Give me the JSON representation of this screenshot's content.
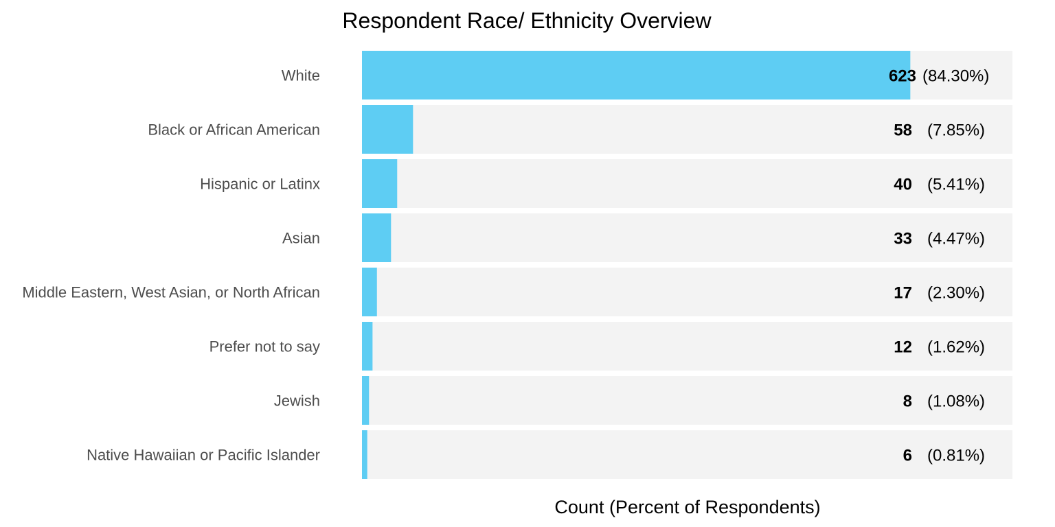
{
  "chart_data": {
    "type": "bar",
    "orientation": "horizontal",
    "title": "Respondent Race/ Ethnicity Overview",
    "xlabel": "Count (Percent of Respondents)",
    "ylabel": "",
    "categories": [
      "White",
      "Black or African American",
      "Hispanic or Latinx",
      "Asian",
      "Middle Eastern, West Asian, or North African",
      "Prefer not to say",
      "Jewish",
      "Native Hawaiian or Pacific Islander"
    ],
    "values": [
      623,
      58,
      40,
      33,
      17,
      12,
      8,
      6
    ],
    "percent_labels": [
      "(84.30%)",
      "(7.85%)",
      "(5.41%)",
      "(4.47%)",
      "(2.30%)",
      "(1.62%)",
      "(1.08%)",
      "(0.81%)"
    ],
    "xlim": [
      0,
      739
    ],
    "grid": false,
    "legend": "none",
    "colors": {
      "bar": "#5ecdf3",
      "track": "#f3f3f3",
      "category_text": "#4d4d4d",
      "value_text": "#000000"
    }
  }
}
